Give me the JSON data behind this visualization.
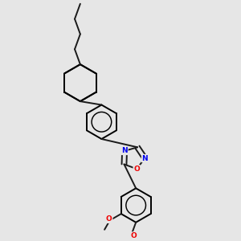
{
  "bg_color": "#e6e6e6",
  "bond_color": "#1a1a1a",
  "N_color": "#0000ee",
  "O_color": "#ee0000",
  "line_width": 1.4,
  "font_size": 6.5,
  "xlim": [
    0,
    1
  ],
  "ylim": [
    0,
    1
  ],
  "r_hex": 0.072,
  "r_cyc": 0.078,
  "pentagon_r": 0.048
}
